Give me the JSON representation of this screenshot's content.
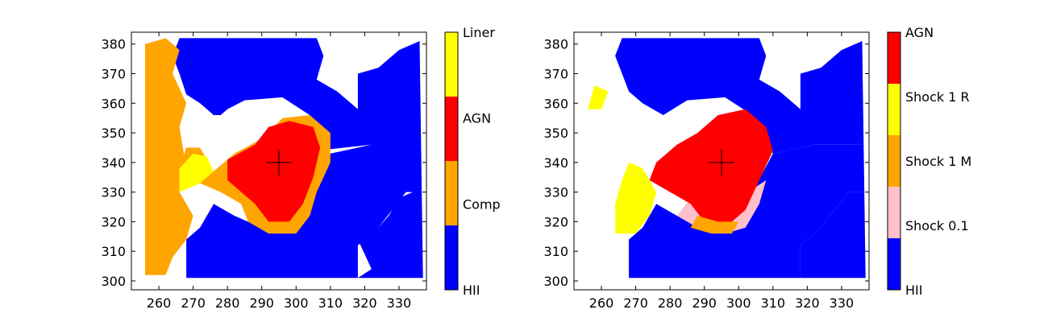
{
  "chart_data": [
    {
      "type": "heatmap",
      "title": "",
      "xlabel": "",
      "ylabel": "",
      "xlim": [
        252,
        338
      ],
      "ylim": [
        297,
        384
      ],
      "xticks": [
        260,
        270,
        280,
        290,
        300,
        310,
        320,
        330
      ],
      "yticks": [
        300,
        310,
        320,
        330,
        340,
        350,
        360,
        370,
        380
      ],
      "grid": false,
      "marker": {
        "x": 295,
        "y": 340,
        "symbol": "+"
      },
      "colorbar": {
        "categories": [
          "HII",
          "Comp",
          "AGN",
          "Liner"
        ],
        "colors": [
          "#0000ff",
          "#ffa500",
          "#ff0000",
          "#ffff00"
        ],
        "labels": [
          "HII",
          "Comp",
          "AGN",
          "Liner"
        ]
      },
      "regions": [
        {
          "class": "HII",
          "polygon": [
            [
              268,
              301
            ],
            [
              318,
              301
            ],
            [
              322,
              304
            ],
            [
              318,
              314
            ],
            [
              324,
              318
            ],
            [
              327,
              322
            ],
            [
              330,
              328
            ],
            [
              334,
              330
            ],
            [
              335,
              342
            ],
            [
              322,
              346
            ],
            [
              306,
              344
            ],
            [
              304,
              356
            ],
            [
              296,
              362
            ],
            [
              285,
              361
            ],
            [
              280,
              358
            ],
            [
              278,
              356
            ],
            [
              276,
              356
            ],
            [
              272,
              360
            ],
            [
              268,
              363
            ],
            [
              266,
              370
            ],
            [
              264,
              376
            ],
            [
              266,
              382
            ],
            [
              290,
              382
            ],
            [
              306,
              382
            ],
            [
              308,
              376
            ],
            [
              306,
              368
            ],
            [
              312,
              364
            ],
            [
              318,
              358
            ],
            [
              318,
              370
            ],
            [
              324,
              372
            ],
            [
              330,
              378
            ],
            [
              336,
              381
            ],
            [
              337,
              301
            ]
          ]
        },
        {
          "class": "HII",
          "polygon": [
            [
              268,
              301
            ],
            [
              318,
              301
            ],
            [
              318,
              312
            ],
            [
              324,
              318
            ],
            [
              328,
              324
            ],
            [
              332,
              330
            ],
            [
              336,
              330
            ],
            [
              336,
              346
            ],
            [
              322,
              346
            ],
            [
              310,
              343
            ],
            [
              304,
              330
            ],
            [
              300,
              322
            ],
            [
              290,
              318
            ],
            [
              282,
              322
            ],
            [
              276,
              326
            ],
            [
              272,
              318
            ],
            [
              268,
              314
            ],
            [
              268,
              301
            ]
          ]
        },
        {
          "class": "Comp",
          "polygon": [
            [
              276,
              337
            ],
            [
              282,
              343
            ],
            [
              290,
              348
            ],
            [
              296,
              355
            ],
            [
              304,
              356
            ],
            [
              310,
              350
            ],
            [
              310,
              340
            ],
            [
              306,
              330
            ],
            [
              304,
              322
            ],
            [
              300,
              316
            ],
            [
              292,
              316
            ],
            [
              286,
              320
            ],
            [
              284,
              326
            ],
            [
              278,
              330
            ],
            [
              272,
              333
            ],
            [
              266,
              338
            ],
            [
              268,
              345
            ],
            [
              272,
              345
            ]
          ]
        },
        {
          "class": "AGN",
          "polygon": [
            [
              280,
              341
            ],
            [
              288,
              346
            ],
            [
              292,
              352
            ],
            [
              298,
              354
            ],
            [
              305,
              352
            ],
            [
              307,
              345
            ],
            [
              305,
              335
            ],
            [
              302,
              326
            ],
            [
              298,
              320
            ],
            [
              292,
              320
            ],
            [
              288,
              326
            ],
            [
              284,
              330
            ],
            [
              280,
              334
            ]
          ]
        },
        {
          "class": "Comp",
          "polygon": [
            [
              256,
              302
            ],
            [
              262,
              302
            ],
            [
              264,
              308
            ],
            [
              268,
              314
            ],
            [
              270,
              322
            ],
            [
              266,
              330
            ],
            [
              268,
              338
            ],
            [
              266,
              352
            ],
            [
              268,
              360
            ],
            [
              264,
              370
            ],
            [
              266,
              378
            ],
            [
              262,
              382
            ],
            [
              256,
              380
            ],
            [
              256,
              302
            ]
          ]
        },
        {
          "class": "Liner",
          "polygon": [
            [
              266,
              330
            ],
            [
              272,
              333
            ],
            [
              276,
              337
            ],
            [
              274,
              342
            ],
            [
              270,
              343
            ],
            [
              266,
              338
            ]
          ]
        }
      ]
    },
    {
      "type": "heatmap",
      "title": "",
      "xlabel": "",
      "ylabel": "",
      "xlim": [
        252,
        338
      ],
      "ylim": [
        297,
        384
      ],
      "xticks": [
        260,
        270,
        280,
        290,
        300,
        310,
        320,
        330
      ],
      "yticks": [
        300,
        310,
        320,
        330,
        340,
        350,
        360,
        370,
        380
      ],
      "grid": false,
      "marker": {
        "x": 295,
        "y": 340,
        "symbol": "+"
      },
      "colorbar": {
        "categories": [
          "HII",
          "Shock 0.1",
          "Shock 1 M",
          "Shock 1 R",
          "AGN"
        ],
        "colors": [
          "#0000ff",
          "#ffc0cb",
          "#ffa500",
          "#ffff00",
          "#ff0000"
        ],
        "labels": [
          "HII",
          "Shock 0.1",
          "Shock 1 M",
          "Shock 1 R",
          "AGN"
        ]
      },
      "regions": [
        {
          "class": "HII",
          "polygon": [
            [
              268,
              301
            ],
            [
              318,
              301
            ],
            [
              318,
              312
            ],
            [
              324,
              318
            ],
            [
              328,
              324
            ],
            [
              332,
              330
            ],
            [
              336,
              330
            ],
            [
              336,
              346
            ],
            [
              322,
              346
            ],
            [
              310,
              343
            ],
            [
              304,
              356
            ],
            [
              296,
              362
            ],
            [
              285,
              361
            ],
            [
              278,
              356
            ],
            [
              272,
              360
            ],
            [
              268,
              364
            ],
            [
              266,
              370
            ],
            [
              264,
              376
            ],
            [
              266,
              382
            ],
            [
              306,
              382
            ],
            [
              308,
              376
            ],
            [
              306,
              368
            ],
            [
              312,
              364
            ],
            [
              318,
              358
            ],
            [
              318,
              370
            ],
            [
              324,
              372
            ],
            [
              330,
              378
            ],
            [
              336,
              381
            ],
            [
              337,
              301
            ]
          ]
        },
        {
          "class": "HII",
          "polygon": [
            [
              268,
              301
            ],
            [
              318,
              301
            ],
            [
              318,
              312
            ],
            [
              324,
              318
            ],
            [
              328,
              324
            ],
            [
              332,
              330
            ],
            [
              336,
              330
            ],
            [
              336,
              346
            ],
            [
              322,
              346
            ],
            [
              310,
              343
            ],
            [
              304,
              330
            ],
            [
              300,
              322
            ],
            [
              290,
              318
            ],
            [
              282,
              322
            ],
            [
              276,
              326
            ],
            [
              272,
              318
            ],
            [
              268,
              314
            ],
            [
              268,
              301
            ]
          ]
        },
        {
          "class": "Shock 0.1",
          "polygon": [
            [
              282,
              322
            ],
            [
              288,
              318
            ],
            [
              296,
              316
            ],
            [
              302,
              318
            ],
            [
              306,
              326
            ],
            [
              308,
              334
            ],
            [
              300,
              328
            ],
            [
              292,
              326
            ],
            [
              286,
              328
            ]
          ]
        },
        {
          "class": "AGN",
          "polygon": [
            [
              276,
              340
            ],
            [
              282,
              346
            ],
            [
              288,
              350
            ],
            [
              294,
              356
            ],
            [
              302,
              358
            ],
            [
              308,
              352
            ],
            [
              310,
              344
            ],
            [
              306,
              334
            ],
            [
              302,
              324
            ],
            [
              296,
              318
            ],
            [
              290,
              320
            ],
            [
              286,
              326
            ],
            [
              280,
              330
            ],
            [
              274,
              334
            ]
          ]
        },
        {
          "class": "Shock 1 M",
          "polygon": [
            [
              286,
              318
            ],
            [
              292,
              316
            ],
            [
              298,
              316
            ],
            [
              300,
              320
            ],
            [
              294,
              320
            ],
            [
              288,
              322
            ]
          ]
        },
        {
          "class": "Shock 1 R",
          "polygon": [
            [
              264,
              316
            ],
            [
              270,
              316
            ],
            [
              274,
              322
            ],
            [
              276,
              330
            ],
            [
              272,
              338
            ],
            [
              268,
              340
            ],
            [
              266,
              334
            ],
            [
              264,
              326
            ]
          ]
        },
        {
          "class": "Shock 1 R",
          "polygon": [
            [
              256,
              358
            ],
            [
              260,
              358
            ],
            [
              262,
              364
            ],
            [
              258,
              366
            ]
          ]
        }
      ]
    }
  ]
}
